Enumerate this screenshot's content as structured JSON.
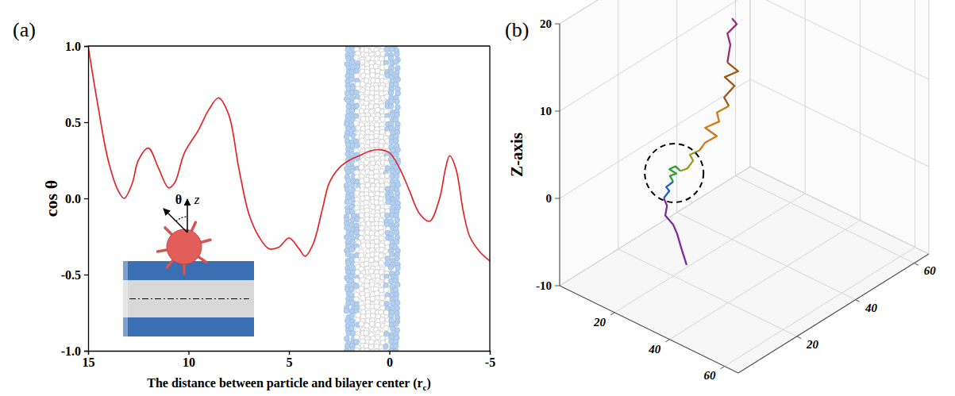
{
  "chart_data": [
    {
      "type": "line",
      "panel": "(a)",
      "x_label": "The distance between particle and bilayer center (rc)",
      "y_label": "cos θ",
      "annotations": [
        "θ",
        "z"
      ],
      "xlim": [
        15,
        -5
      ],
      "ylim": [
        -1,
        1
      ],
      "xticks": [
        15,
        10,
        5,
        0,
        -5
      ],
      "yticks": [
        {
          "value": -1,
          "label": "-1.0"
        },
        -0.5,
        {
          "value": 0,
          "label": "0.0"
        },
        0.5,
        {
          "value": 1,
          "label": "1.0"
        }
      ],
      "series": [
        {
          "color": "#e3262b",
          "x": [
            15,
            14.5,
            14,
            13.5,
            13.2,
            12.8,
            12.5,
            12,
            11.5,
            11,
            10.7,
            10.2,
            9.5,
            9,
            8.5,
            8,
            7.5,
            7,
            6.5,
            6,
            5.5,
            5,
            4.5,
            4.2,
            3.8,
            3.3,
            3,
            2.5,
            2,
            1.5,
            1,
            0.5,
            0,
            -0.5,
            -1,
            -1.5,
            -2,
            -2.5,
            -2.8,
            -3,
            -3.3,
            -3.7,
            -4,
            -4.5,
            -5
          ],
          "values": [
            1.0,
            0.6,
            0.25,
            0.05,
            0.0,
            0.1,
            0.25,
            0.33,
            0.2,
            0.07,
            0.1,
            0.3,
            0.45,
            0.58,
            0.66,
            0.55,
            0.2,
            -0.1,
            -0.25,
            -0.33,
            -0.32,
            -0.26,
            -0.33,
            -0.38,
            -0.3,
            -0.05,
            0.1,
            0.2,
            0.25,
            0.28,
            0.31,
            0.32,
            0.3,
            0.2,
            0.05,
            -0.1,
            -0.15,
            0.0,
            0.2,
            0.28,
            0.2,
            -0.1,
            -0.25,
            -0.35,
            -0.41
          ]
        }
      ]
    },
    {
      "type": "line3d",
      "panel": "(b)",
      "z_label": "Z-axis",
      "xlim": [
        0,
        65
      ],
      "ylim": [
        0,
        65
      ],
      "zlim": [
        -10,
        20
      ],
      "xticks": [
        20,
        40,
        60
      ],
      "yticks": [
        20,
        40,
        60
      ],
      "zticks": [
        -10,
        0,
        10,
        20
      ],
      "series": [
        {
          "color": "#7a2a9a",
          "x": [
            30,
            30,
            30,
            30,
            30,
            30,
            30
          ],
          "y": [
            15.2,
            13.3,
            12.0,
            10.6,
            7.9,
            8.5,
            7.4
          ],
          "z": [
            -6.2,
            -3.8,
            -2.0,
            -0.6,
            1.0,
            2.0,
            3.1
          ]
        },
        {
          "color": "#2060c0",
          "x": [
            30,
            30,
            30,
            30
          ],
          "y": [
            7.4,
            9.3,
            8.2,
            10.6
          ],
          "z": [
            3.1,
            3.5,
            4.2,
            4.3
          ]
        },
        {
          "color": "#2ca02c",
          "x": [
            30,
            30,
            30,
            30,
            30,
            30
          ],
          "y": [
            10.6,
            9.5,
            11.7,
            9.3,
            11.4,
            13.1
          ],
          "z": [
            4.3,
            5.2,
            5.0,
            6.0,
            5.9,
            5.0
          ]
        },
        {
          "color": "#9a9a1e",
          "x": [
            30,
            30,
            30,
            30,
            30
          ],
          "y": [
            13.1,
            15.5,
            17.4,
            16.3,
            19.6
          ],
          "z": [
            5.0,
            4.8,
            5.3,
            6.2,
            6.0
          ]
        },
        {
          "color": "#d07a1a",
          "x": [
            30,
            30,
            30,
            30,
            30,
            30,
            30
          ],
          "y": [
            19.6,
            21.5,
            25.5,
            21.5,
            26.3,
            25.5,
            29.6
          ],
          "z": [
            6.0,
            6.5,
            6.4,
            8.2,
            7.9,
            9.1,
            9.0
          ]
        },
        {
          "color": "#9a5a1c",
          "x": [
            30,
            30,
            30,
            30,
            30,
            30
          ],
          "y": [
            29.6,
            28.0,
            31.5,
            28.2,
            32.8,
            29.1
          ],
          "z": [
            9.0,
            10.3,
            10.9,
            12.6,
            12.3,
            14.1
          ]
        },
        {
          "color": "#9a2a78",
          "x": [
            30,
            30,
            30,
            30,
            30
          ],
          "y": [
            29.1,
            30.1,
            29.1,
            32.3,
            30.7
          ],
          "z": [
            14.1,
            15.9,
            17.4,
            17.8,
            18.8
          ]
        }
      ]
    }
  ]
}
